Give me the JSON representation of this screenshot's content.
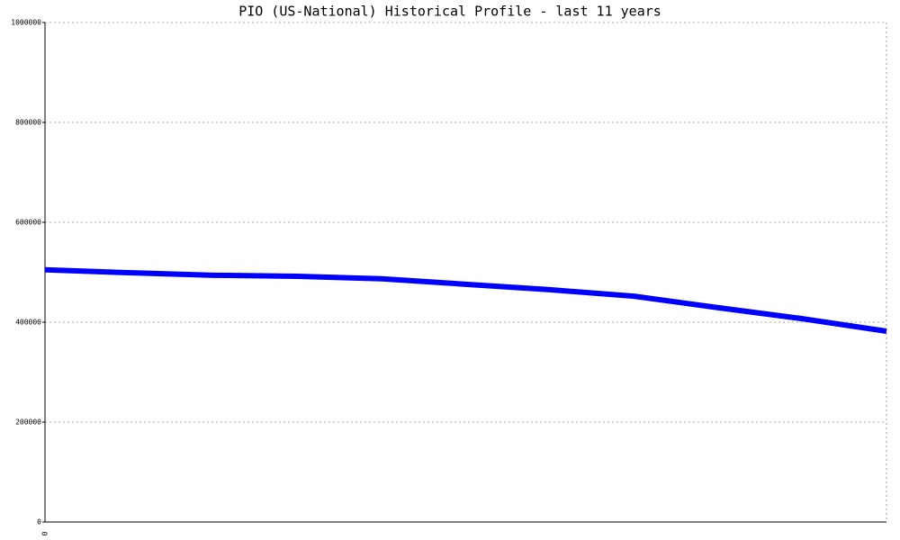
{
  "chart_data": {
    "type": "line",
    "title": "PIO (US-National) Historical Profile - last 11 years",
    "categories": [
      "0",
      null,
      null,
      null,
      null,
      null,
      null,
      null,
      null,
      null,
      null
    ],
    "series": [
      {
        "name": "PIO",
        "color": "#0000ff",
        "values": [
          505000,
          499000,
          494000,
          492000,
          487000,
          476000,
          465000,
          452000,
          429000,
          407000,
          382000
        ]
      }
    ],
    "ylim": [
      0,
      1000000
    ],
    "yticks": [
      0,
      200000,
      400000,
      600000,
      800000,
      1000000
    ],
    "grid": true
  }
}
